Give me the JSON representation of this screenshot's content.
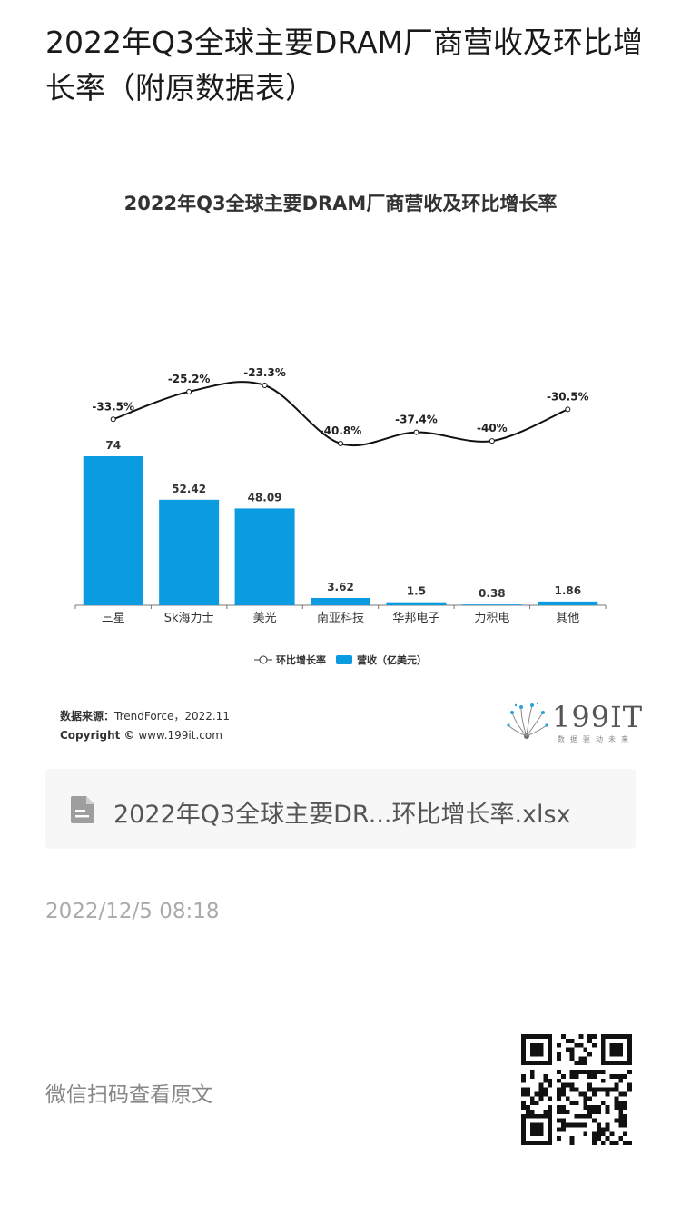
{
  "article": {
    "title": "2022年Q3全球主要DRAM厂商营收及环比增长率（附原数据表）"
  },
  "chart_data": {
    "type": "bar",
    "title": "2022年Q3全球主要DRAM厂商营收及环比增长率",
    "categories": [
      "三星",
      "Sk海力士",
      "美光",
      "南亚科技",
      "华邦电子",
      "力积电",
      "其他"
    ],
    "series": [
      {
        "name": "营收（亿美元）",
        "type": "bar",
        "color": "#0a9be0",
        "values": [
          74,
          52.42,
          48.09,
          3.62,
          1.5,
          0.38,
          1.86
        ],
        "labels": [
          "74",
          "52.42",
          "48.09",
          "3.62",
          "1.5",
          "0.38",
          "1.86"
        ]
      },
      {
        "name": "环比增长率",
        "type": "line",
        "color": "#111111",
        "values": [
          -33.5,
          -25.2,
          -23.3,
          -40.8,
          -37.4,
          -40,
          -30.5
        ],
        "labels": [
          "-33.5%",
          "-25.2%",
          "-23.3%",
          "-40.8%",
          "-37.4%",
          "-40%",
          "-30.5%"
        ]
      }
    ],
    "legend_position": "bottom-center",
    "grid": false
  },
  "source": {
    "label": "数据来源：",
    "value": "TrendForce，2022.11",
    "copyright_label": "Copyright ©",
    "copyright_value": " www.199it.com"
  },
  "logo": {
    "text": "199IT",
    "sub": "数据驱动未来"
  },
  "attachment": {
    "file_name": "2022年Q3全球主要DR...环比增长率.xlsx",
    "icon": "document-icon"
  },
  "meta": {
    "timestamp": "2022/12/5 08:18"
  },
  "footer": {
    "qr_hint": "微信扫码查看原文"
  }
}
